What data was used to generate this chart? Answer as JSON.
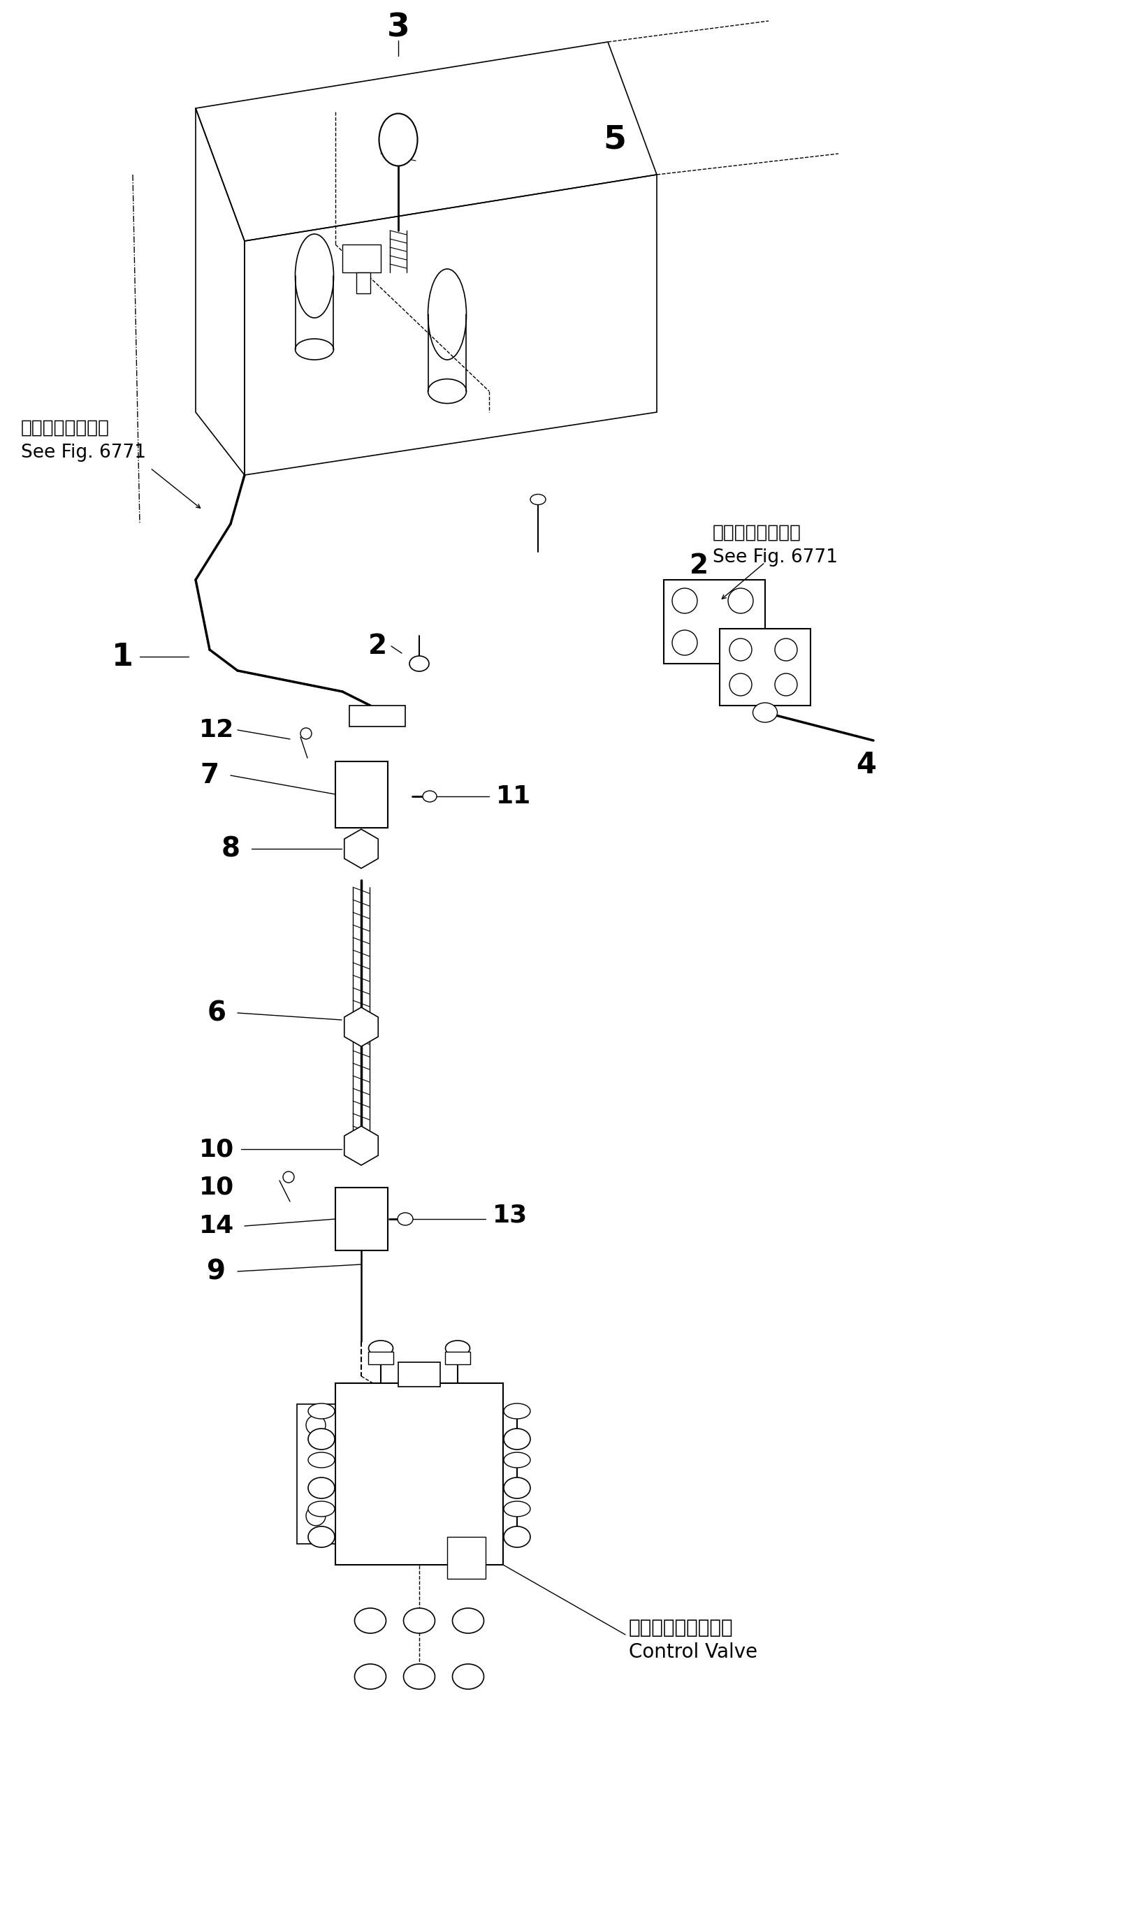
{
  "bg_color": "#ffffff",
  "lc": "#000000",
  "lw": 1.0,
  "fig_width": 16.24,
  "fig_height": 27.27,
  "ref_left_line1": "第６７７１図参照",
  "ref_left_line2": "See Fig. 6771",
  "ref_right_line1": "第６７７１図参照",
  "ref_right_line2": "See Fig. 6771",
  "cv_line1": "コントロールバルブ",
  "cv_line2": "Control Valve"
}
